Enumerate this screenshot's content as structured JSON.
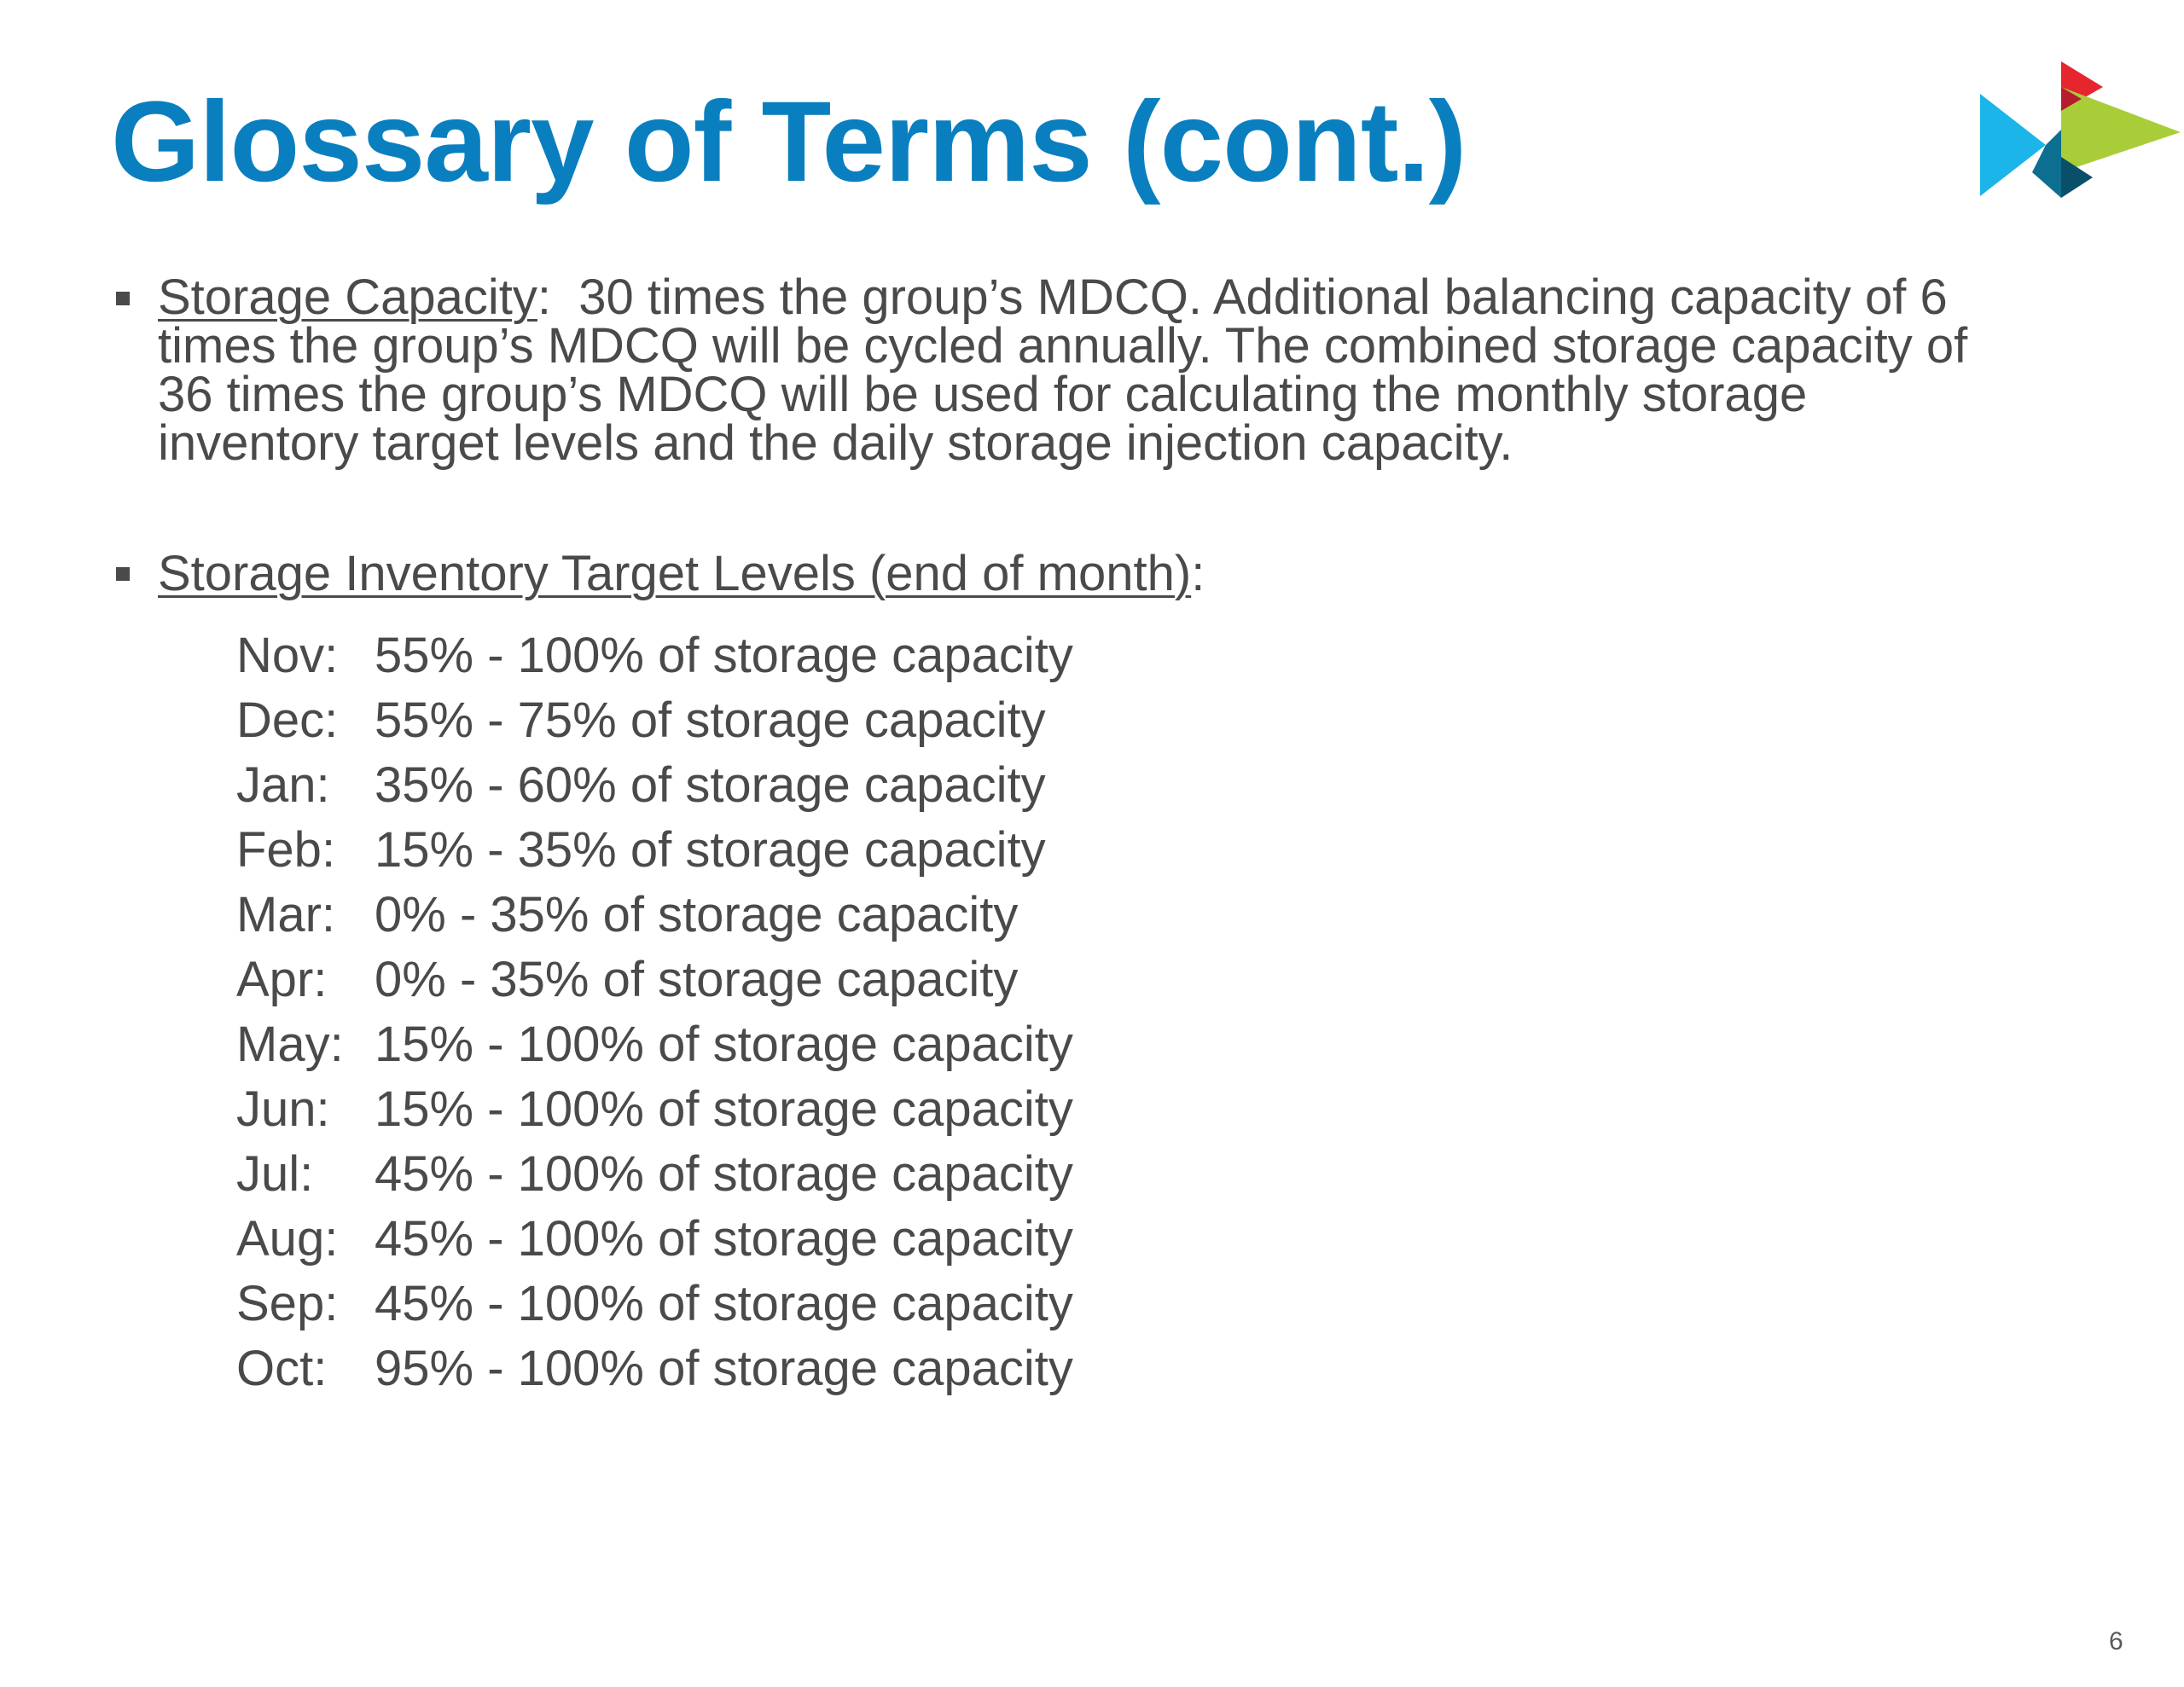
{
  "slide": {
    "title": "Glossary of Terms (cont.)",
    "page_number": "6",
    "colors": {
      "title": "#0a7fbf",
      "body_text": "#4a4a4a",
      "logo_blue": "#1bb5ea",
      "logo_red": "#e5262f",
      "logo_green": "#a9cd38",
      "logo_teal": "#0d6f8f"
    }
  },
  "bullets": [
    {
      "term": "Storage Capacity",
      "separator": ":",
      "text": "  30 times the group’s MDCQ. Additional balancing capacity of 6 times the group’s MDCQ will be cycled annually. The combined storage capacity of 36 times the group’s MDCQ will be used for calculating the monthly storage inventory target levels and the daily storage injection capacity."
    },
    {
      "term": "Storage Inventory Target Levels (end of month)",
      "separator": ":"
    }
  ],
  "target_levels": [
    {
      "month": "Nov:",
      "range": "55% - 100% of storage capacity"
    },
    {
      "month": "Dec:",
      "range": "55% - 75% of storage capacity"
    },
    {
      "month": "Jan:",
      "range": "35% - 60% of storage capacity"
    },
    {
      "month": "Feb:",
      "range": "15% - 35% of storage capacity"
    },
    {
      "month": "Mar:",
      "range": "0% - 35% of storage capacity"
    },
    {
      "month": "Apr:",
      "range": "0% - 35% of storage capacity"
    },
    {
      "month": "May:",
      "range": "15% - 100% of storage capacity"
    },
    {
      "month": "Jun:",
      "range": "15% - 100% of storage capacity"
    },
    {
      "month": "Jul:",
      "range": "45% - 100% of storage capacity"
    },
    {
      "month": "Aug:",
      "range": "45% - 100% of storage capacity"
    },
    {
      "month": "Sep:",
      "range": "45% - 100% of storage capacity"
    },
    {
      "month": "Oct:",
      "range": "95% - 100% of storage capacity"
    }
  ]
}
